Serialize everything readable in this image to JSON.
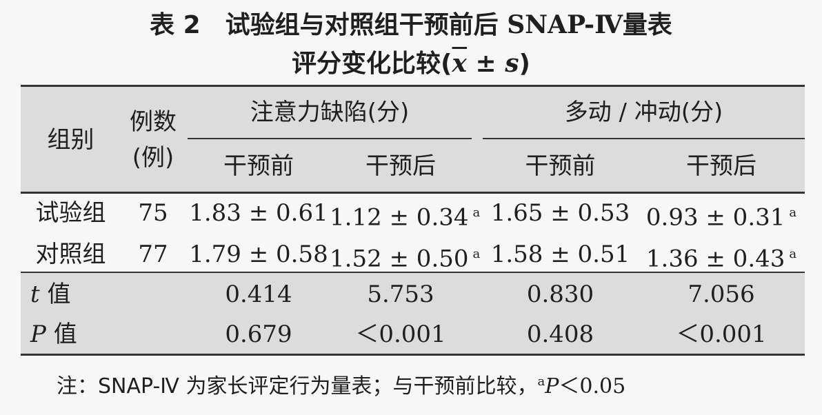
{
  "title": {
    "line1_prefix": "表 2　试验组与对照组干预前后 ",
    "line1_formula": "SNAP-Ⅳ",
    "line1_suffix": "量表",
    "line2_prefix": "评分变化比较(",
    "line2_x": "x",
    "line2_pm": " ± ",
    "line2_s": "s",
    "line2_suffix": ")"
  },
  "headers": {
    "group": "组别",
    "count_line1": "例数",
    "count_line2": "(例)",
    "attention": "注意力缺陷(分)",
    "hyperactivity": "多动 / 冲动(分)",
    "before": "干预前",
    "after": "干预后"
  },
  "rows": [
    {
      "group": "试验组",
      "n": "75",
      "att_before": "1.83 ± 0.61",
      "att_after": "1.12 ± 0.34",
      "att_after_sup": "a",
      "hyp_before": "1.65 ± 0.53",
      "hyp_after": "0.93 ± 0.31",
      "hyp_after_sup": "a"
    },
    {
      "group": "对照组",
      "n": "77",
      "att_before": "1.79 ± 0.58",
      "att_after": "1.52 ± 0.50",
      "att_after_sup": "a",
      "hyp_before": "1.58 ± 0.51",
      "hyp_after": "1.36 ± 0.43",
      "hyp_after_sup": "a"
    }
  ],
  "stats": [
    {
      "label_var": "t",
      "label_text": " 值",
      "att_before": "0.414",
      "att_after": "5.753",
      "hyp_before": "0.830",
      "hyp_after": "7.056"
    },
    {
      "label_var": "P",
      "label_text": " 值",
      "att_before": "0.679",
      "att_after": "＜0.001",
      "hyp_before": "0.408",
      "hyp_after": "＜0.001"
    }
  ],
  "note": {
    "text": "注：SNAP-Ⅳ 为家长评定行为量表；与干预前比较，",
    "sup": "a",
    "tail_var": "P",
    "tail_text": "＜0.05"
  }
}
